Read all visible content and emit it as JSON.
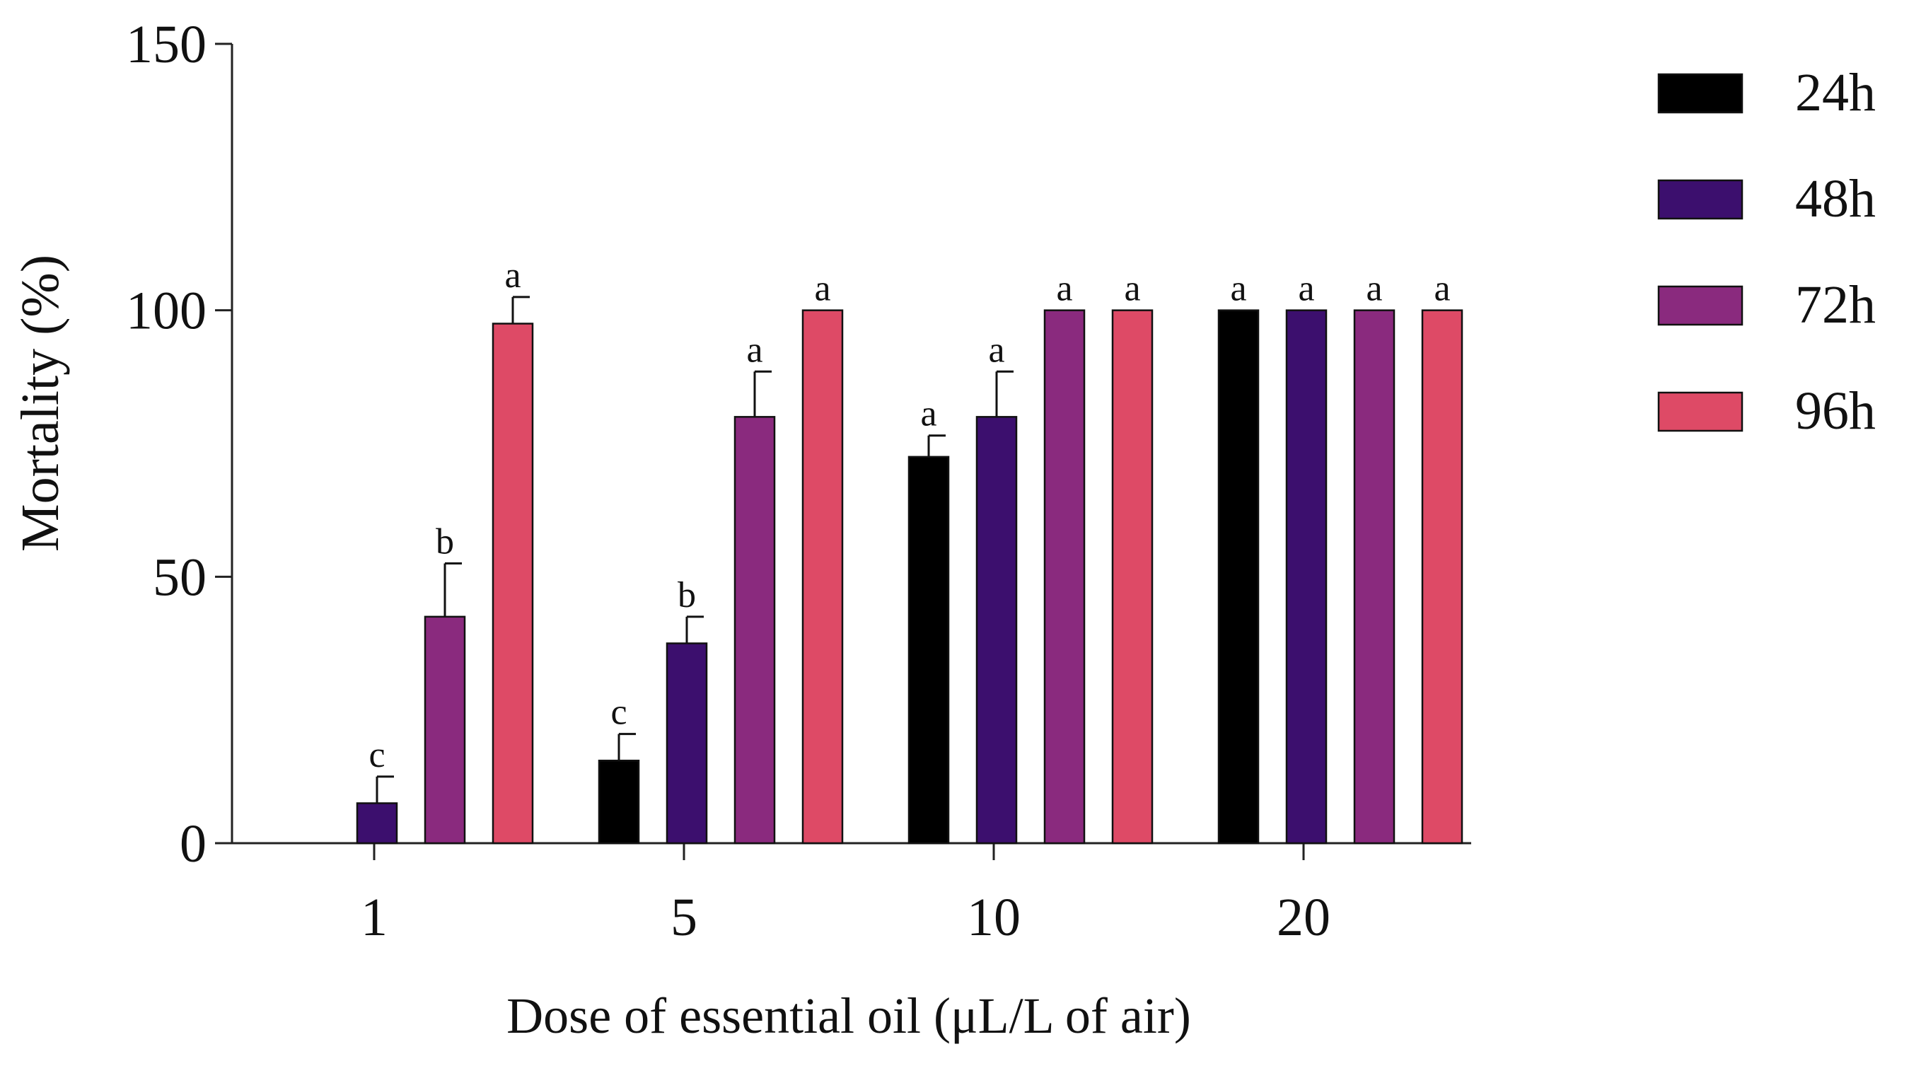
{
  "chart_data": {
    "type": "bar",
    "xlabel": "Dose of essential oil (μL/L of air)",
    "ylabel": "Mortality (%)",
    "ylim": [
      0,
      150
    ],
    "yticks": [
      0,
      50,
      100,
      150
    ],
    "categories": [
      "1",
      "5",
      "10",
      "20"
    ],
    "legend_position": "right",
    "series": [
      {
        "name": "24h",
        "color": "#000000",
        "values": [
          0,
          15.5,
          72.5,
          100
        ],
        "errors": [
          0,
          5,
          4,
          0
        ],
        "labels": [
          "",
          "c",
          "a",
          "a"
        ]
      },
      {
        "name": "48h",
        "color": "#3c0f6e",
        "values": [
          7.5,
          37.5,
          80,
          100
        ],
        "errors": [
          5,
          5,
          8.5,
          0
        ],
        "labels": [
          "c",
          "b",
          "a",
          "a"
        ]
      },
      {
        "name": "72h",
        "color": "#8a2a7e",
        "values": [
          42.5,
          80,
          100,
          100
        ],
        "errors": [
          10,
          8.5,
          0,
          0
        ],
        "labels": [
          "b",
          "a",
          "a",
          "a"
        ]
      },
      {
        "name": "96h",
        "color": "#de4a66",
        "values": [
          97.5,
          100,
          100,
          100
        ],
        "errors": [
          5,
          0,
          0,
          0
        ],
        "labels": [
          "a",
          "a",
          "a",
          "a"
        ]
      }
    ]
  }
}
